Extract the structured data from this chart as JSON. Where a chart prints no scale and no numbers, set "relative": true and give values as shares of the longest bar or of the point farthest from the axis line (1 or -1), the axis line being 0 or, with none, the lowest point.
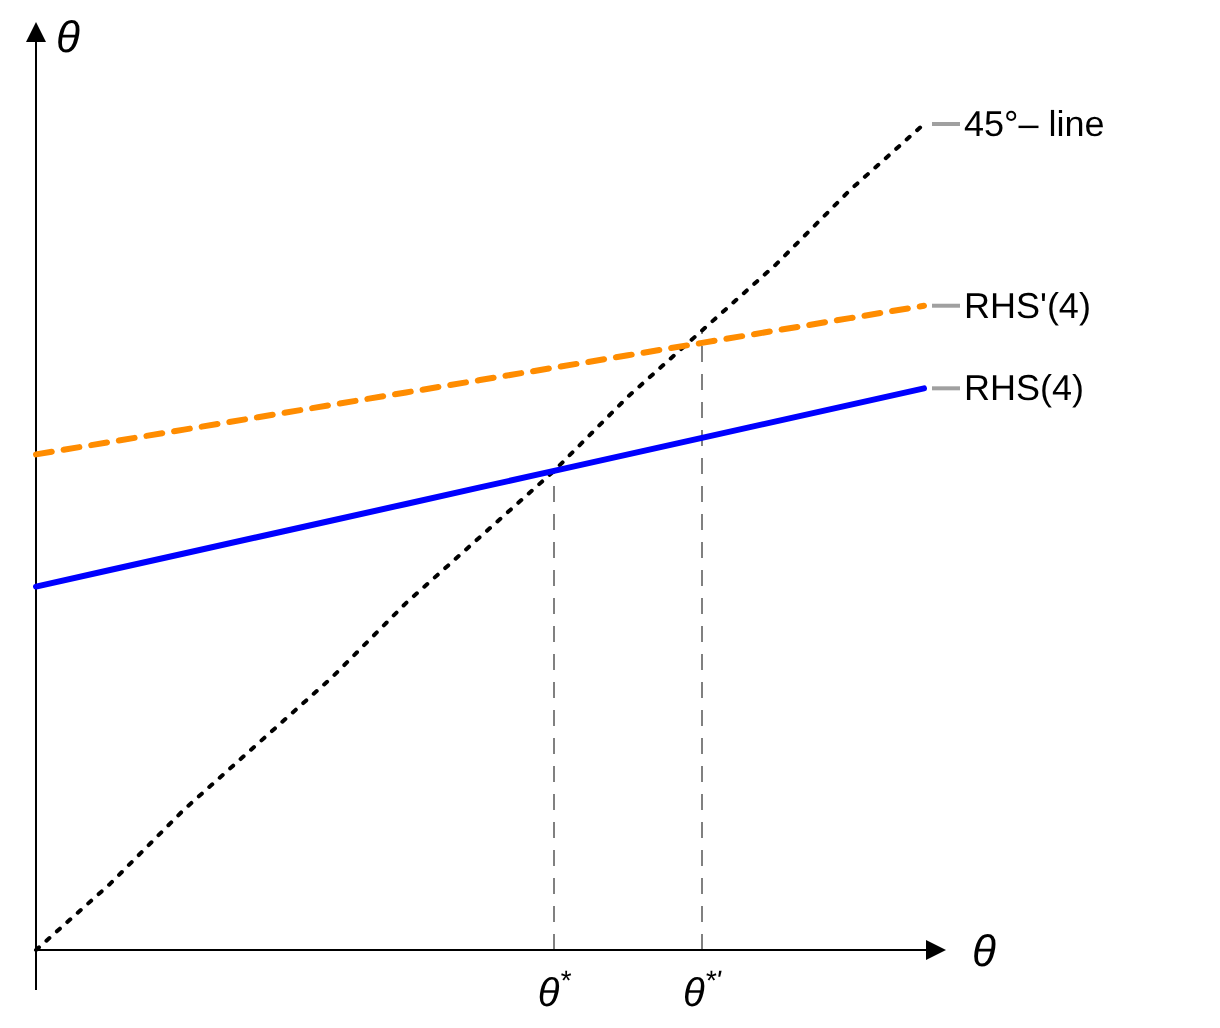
{
  "chart_data": {
    "type": "line",
    "relative": true,
    "xlabel": "θ",
    "ylabel": "θ",
    "categories": [
      null,
      null,
      null,
      null,
      null,
      null,
      null,
      "θ$^{*}$",
      null,
      "θ$^{*'}$",
      null,
      null,
      null
    ],
    "grid": false,
    "marker": "none",
    "series": [
      {
        "name": "45°– line",
        "color": "#000000",
        "line_style": "dotted",
        "values": [
          0,
          0.08,
          0.17,
          0.25,
          0.33,
          0.42,
          0.5,
          0.58,
          0.67,
          0.75,
          0.83,
          0.92,
          1
        ]
      },
      {
        "name": "RHS'(4)",
        "color": "#ff8c00",
        "line_style": "dashed",
        "values": [
          0.6,
          0.615,
          0.63,
          0.645,
          0.66,
          0.675,
          0.69,
          0.705,
          0.72,
          0.735,
          0.75,
          0.765,
          0.78
        ]
      },
      {
        "name": "RHS(4)",
        "color": "#0000ff",
        "line_style": "solid",
        "values": [
          0.44,
          0.46,
          0.48,
          0.5,
          0.52,
          0.54,
          0.56,
          0.58,
          0.6,
          0.62,
          0.64,
          0.66,
          0.68
        ]
      }
    ],
    "ref_lines": [
      {
        "axis": "x",
        "value": "θ$^{*}$",
        "color": "#808080",
        "line_style": "dashed"
      },
      {
        "axis": "x",
        "value": "θ$^{*'}$",
        "color": "#808080",
        "line_style": "dashed"
      }
    ]
  }
}
